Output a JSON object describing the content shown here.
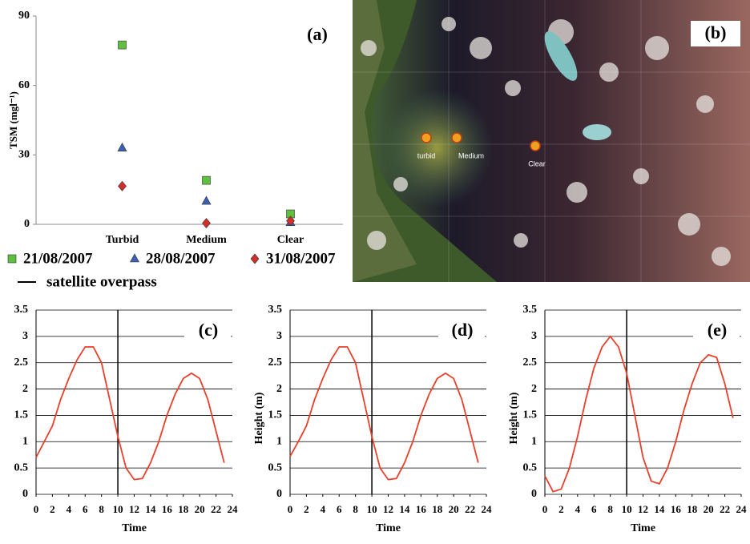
{
  "chart_data": [
    {
      "type": "scatter",
      "title": "(a)",
      "y_label": "TSM (mgl⁻¹)",
      "categories": [
        "Turbid",
        "Medium",
        "Clear"
      ],
      "series": [
        {
          "name": "21/08/2007",
          "color": "#5fbf3f",
          "marker": "square",
          "values": [
            77.5,
            19,
            4.5
          ]
        },
        {
          "name": "28/08/2007",
          "color": "#3d5fb4",
          "marker": "triangle",
          "values": [
            33,
            10,
            0.8
          ]
        },
        {
          "name": "31/08/2007",
          "color": "#d02f2a",
          "marker": "diamond",
          "values": [
            16.5,
            0.5,
            1.5
          ]
        }
      ],
      "ylim": [
        0,
        90
      ],
      "yticks": [
        0,
        30,
        60,
        90
      ],
      "grid": false
    },
    {
      "type": "line",
      "title": "(c)",
      "x_label": "Time",
      "color": "#e8402a",
      "x": [
        0,
        1,
        2,
        3,
        4,
        5,
        6,
        7,
        8,
        9,
        10,
        11,
        12,
        13,
        14,
        15,
        16,
        17,
        18,
        19,
        20,
        21,
        22,
        23
      ],
      "values": [
        0.7,
        1.0,
        1.3,
        1.8,
        2.2,
        2.55,
        2.8,
        2.8,
        2.5,
        1.8,
        1.1,
        0.5,
        0.28,
        0.3,
        0.6,
        1.0,
        1.5,
        1.9,
        2.2,
        2.3,
        2.2,
        1.8,
        1.2,
        0.6
      ],
      "overpass": {
        "name": "satellite overpass",
        "x": 10
      },
      "xlim": [
        0,
        24
      ],
      "xticks": [
        0,
        2,
        4,
        6,
        8,
        10,
        12,
        14,
        16,
        18,
        20,
        22,
        24
      ],
      "ylim": [
        0,
        3.5
      ],
      "yticks": [
        0,
        0.5,
        1,
        1.5,
        2,
        2.5,
        3,
        3.5
      ],
      "grid": true
    },
    {
      "type": "line",
      "title": "(d)",
      "x_label": "Time",
      "y_label": "Height (m)",
      "color": "#e8402a",
      "x": [
        0,
        1,
        2,
        3,
        4,
        5,
        6,
        7,
        8,
        9,
        10,
        11,
        12,
        13,
        14,
        15,
        16,
        17,
        18,
        19,
        20,
        21,
        22,
        23
      ],
      "values": [
        0.72,
        1.0,
        1.3,
        1.8,
        2.2,
        2.55,
        2.8,
        2.8,
        2.5,
        1.8,
        1.1,
        0.5,
        0.28,
        0.3,
        0.6,
        1.0,
        1.5,
        1.9,
        2.2,
        2.3,
        2.2,
        1.8,
        1.2,
        0.6
      ],
      "overpass": {
        "x": 10
      },
      "xlim": [
        0,
        24
      ],
      "xticks": [
        0,
        2,
        4,
        6,
        8,
        10,
        12,
        14,
        16,
        18,
        20,
        22,
        24
      ],
      "ylim": [
        0,
        3.5
      ],
      "yticks": [
        0,
        0.5,
        1,
        1.5,
        2,
        2.5,
        3,
        3.5
      ],
      "grid": true
    },
    {
      "type": "line",
      "title": "(e)",
      "x_label": "Time",
      "y_label": "Height (m)",
      "color": "#e8402a",
      "x": [
        0,
        1,
        2,
        3,
        4,
        5,
        6,
        7,
        8,
        9,
        10,
        11,
        12,
        13,
        14,
        15,
        16,
        17,
        18,
        19,
        20,
        21,
        22,
        23
      ],
      "values": [
        0.35,
        0.05,
        0.1,
        0.5,
        1.1,
        1.8,
        2.4,
        2.8,
        3.0,
        2.8,
        2.3,
        1.5,
        0.7,
        0.25,
        0.2,
        0.5,
        1.0,
        1.6,
        2.1,
        2.5,
        2.65,
        2.6,
        2.1,
        1.45
      ],
      "overpass": {
        "x": 10
      },
      "xlim": [
        0,
        24
      ],
      "xticks": [
        0,
        2,
        4,
        6,
        8,
        10,
        12,
        14,
        16,
        18,
        20,
        22,
        24
      ],
      "ylim": [
        0,
        3.5
      ],
      "yticks": [
        0,
        0.5,
        1,
        1.5,
        2,
        2.5,
        3,
        3.5
      ],
      "grid": true
    }
  ],
  "image": {
    "label": "(b)",
    "markers": [
      "turbid",
      "Medium",
      "Clear"
    ]
  }
}
